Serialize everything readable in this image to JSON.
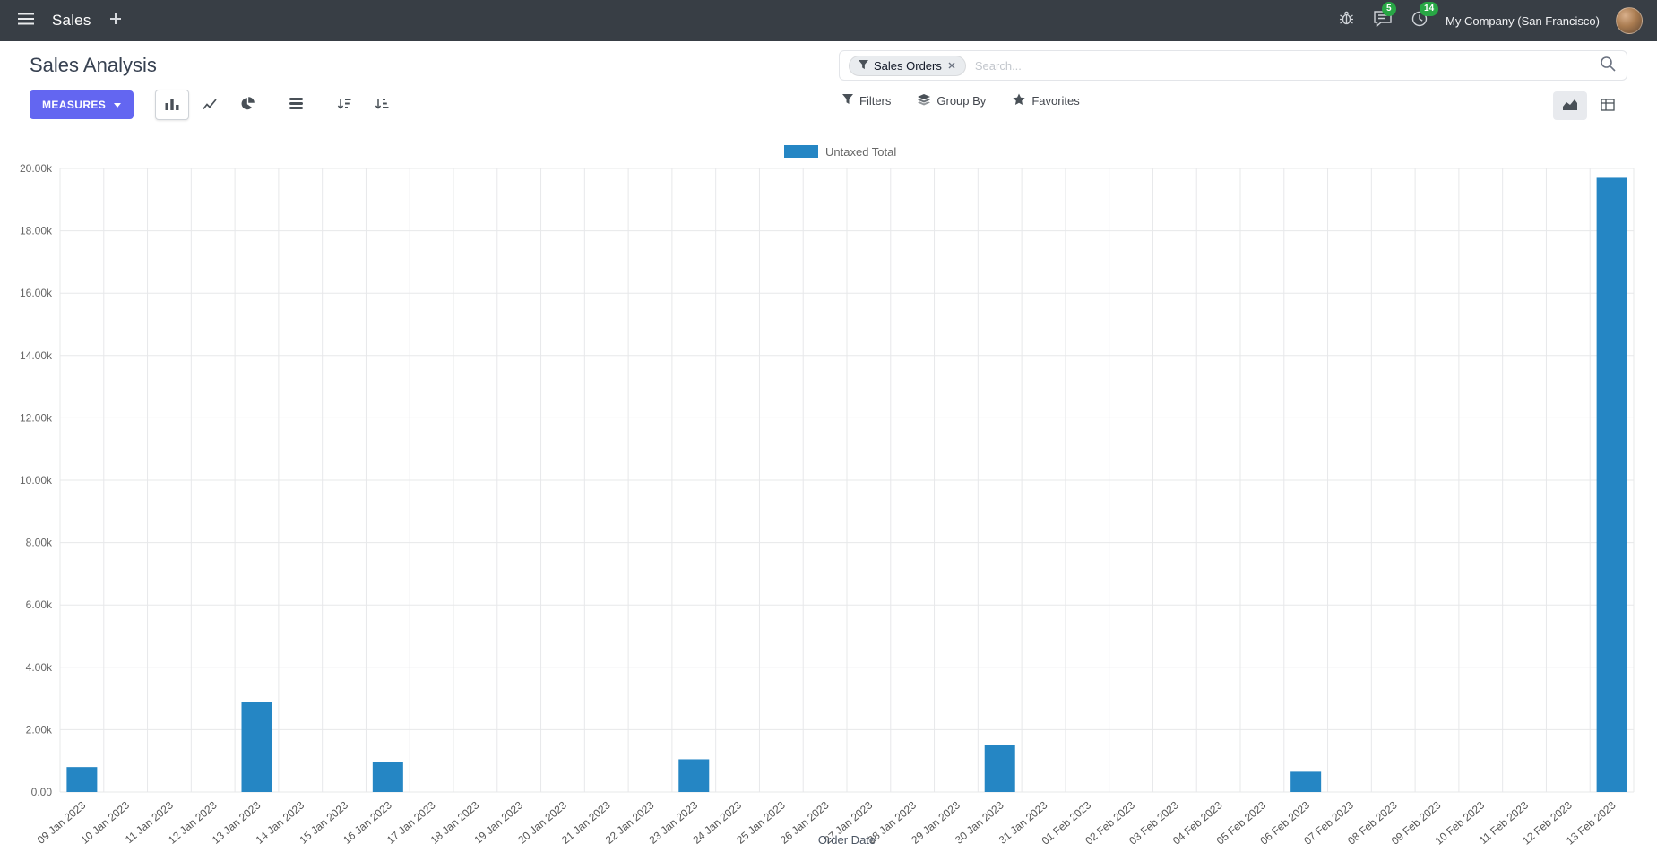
{
  "colors": {
    "header_bg": "#383e45",
    "primary": "#6366f1",
    "bar": "#2586c4",
    "badge_green": "#28a745"
  },
  "header": {
    "app_name": "Sales",
    "messages_badge": "5",
    "activities_badge": "14",
    "company": "My Company (San Francisco)"
  },
  "control_panel": {
    "title": "Sales Analysis",
    "measures_label": "MEASURES",
    "filters_label": "Filters",
    "group_by_label": "Group By",
    "favorites_label": "Favorites",
    "search": {
      "facet_label": "Sales Orders",
      "placeholder": "Search..."
    }
  },
  "chart_data": {
    "type": "bar",
    "title": "",
    "xlabel": "Order Date",
    "ylabel": "",
    "ylim": [
      0,
      20000
    ],
    "ytick_step": 2000,
    "ytick_labels": [
      "0.00",
      "2.00k",
      "4.00k",
      "6.00k",
      "8.00k",
      "10.00k",
      "12.00k",
      "14.00k",
      "16.00k",
      "18.00k",
      "20.00k"
    ],
    "grid": true,
    "legend_position": "top",
    "categories": [
      "09 Jan 2023",
      "10 Jan 2023",
      "11 Jan 2023",
      "12 Jan 2023",
      "13 Jan 2023",
      "14 Jan 2023",
      "15 Jan 2023",
      "16 Jan 2023",
      "17 Jan 2023",
      "18 Jan 2023",
      "19 Jan 2023",
      "20 Jan 2023",
      "21 Jan 2023",
      "22 Jan 2023",
      "23 Jan 2023",
      "24 Jan 2023",
      "25 Jan 2023",
      "26 Jan 2023",
      "27 Jan 2023",
      "28 Jan 2023",
      "29 Jan 2023",
      "30 Jan 2023",
      "31 Jan 2023",
      "01 Feb 2023",
      "02 Feb 2023",
      "03 Feb 2023",
      "04 Feb 2023",
      "05 Feb 2023",
      "06 Feb 2023",
      "07 Feb 2023",
      "08 Feb 2023",
      "09 Feb 2023",
      "10 Feb 2023",
      "11 Feb 2023",
      "12 Feb 2023",
      "13 Feb 2023"
    ],
    "series": [
      {
        "name": "Untaxed Total",
        "color": "#2586c4",
        "values": [
          800,
          0,
          0,
          0,
          2900,
          0,
          0,
          950,
          0,
          0,
          0,
          0,
          0,
          0,
          1050,
          0,
          0,
          0,
          0,
          0,
          0,
          1500,
          0,
          0,
          0,
          0,
          0,
          0,
          650,
          0,
          0,
          0,
          0,
          0,
          0,
          19700
        ]
      }
    ]
  }
}
